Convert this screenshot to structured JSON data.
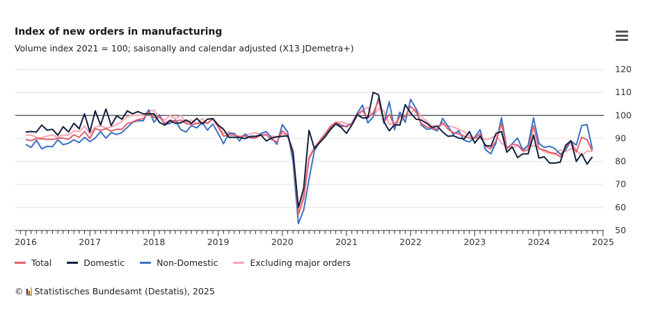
{
  "header": {
    "title": "Index of new orders in manufacturing",
    "subtitle": "Volume index 2021 = 100; saisonally and calendar adjusted (X13 JDemetra+)",
    "menu_icon": "hamburger-menu-icon"
  },
  "chart_data": {
    "type": "line",
    "title": "Index of new orders in manufacturing",
    "subtitle": "Volume index 2021 = 100; saisonally and calendar adjusted (X13 JDemetra+)",
    "x_start": "2016-01",
    "x_end": "2024-11",
    "x_frequency": "monthly",
    "x_ticks": [
      "2016",
      "2017",
      "2018",
      "2019",
      "2020",
      "2021",
      "2022",
      "2023",
      "2024",
      "2025"
    ],
    "y_ticks": [
      50,
      60,
      70,
      80,
      90,
      100,
      110,
      120
    ],
    "ylim": [
      50,
      120
    ],
    "y_axis_side": "right",
    "grid": true,
    "reference_line": 100,
    "legend_position": "bottom",
    "series": [
      {
        "name": "Total",
        "color": "#e0606e",
        "values": [
          89.5,
          89,
          90,
          89.8,
          89.6,
          89.6,
          90,
          90.2,
          89.6,
          91.6,
          90.5,
          93,
          90,
          94.3,
          93.5,
          94.3,
          93.2,
          94,
          94,
          96.5,
          97.2,
          98.2,
          98.6,
          101.5,
          99,
          99.5,
          96.5,
          98,
          97.5,
          98,
          96.5,
          96,
          96.5,
          97,
          96.6,
          98.5,
          95,
          91,
          91.5,
          91.5,
          90.5,
          91,
          90.5,
          90.2,
          91.5,
          91.5,
          89.5,
          88.5,
          93.3,
          91.5,
          83.5,
          57,
          64,
          81,
          86,
          89,
          92,
          95,
          97,
          96,
          95,
          96.5,
          100.5,
          102,
          99,
          101,
          106.5,
          97,
          100.5,
          95.5,
          99.5,
          99.5,
          104,
          101.5,
          96.5,
          95,
          94.5,
          94,
          97,
          94,
          92.5,
          92,
          91,
          90.2,
          90,
          92,
          86.5,
          85.5,
          89,
          96.5,
          85.5,
          87.5,
          87.2,
          84.5,
          85,
          95.5,
          85.5,
          85,
          84,
          83.5,
          82,
          86,
          89,
          84,
          90.5,
          89.5,
          84.5
        ]
      },
      {
        "name": "Domestic",
        "color": "#0f1f3d",
        "values": [
          92.8,
          93,
          92.8,
          95.8,
          93.6,
          94,
          91.4,
          95.1,
          92.8,
          96.6,
          94.2,
          100.7,
          92.8,
          102,
          95.8,
          102.8,
          95.6,
          99.8,
          98.4,
          102,
          100.7,
          101.7,
          100.7,
          100.7,
          100.7,
          97,
          95.8,
          97.7,
          96.6,
          96.8,
          98,
          96.6,
          98.7,
          96.3,
          98.4,
          98.6,
          95.8,
          94,
          90.5,
          90.5,
          90.5,
          89.9,
          90.9,
          90.9,
          91.5,
          88.9,
          90.2,
          90.7,
          90.9,
          91.1,
          84,
          60.1,
          68.3,
          93.5,
          85.6,
          88.2,
          90.7,
          93.8,
          96.3,
          94.8,
          92.2,
          95.8,
          100.4,
          98.9,
          98.9,
          110,
          109,
          97.3,
          93.3,
          96,
          95.8,
          104.7,
          101.1,
          98.4,
          98,
          96.6,
          94.8,
          95.3,
          92.8,
          90.9,
          91.2,
          90.2,
          89.7,
          93,
          88,
          91,
          87,
          86.6,
          92.2,
          93,
          84,
          86.4,
          81.7,
          83.3,
          83.3,
          91.5,
          81.5,
          82,
          79.3,
          79.3,
          79.7,
          87,
          89,
          80,
          83.3,
          78.8,
          82
        ]
      },
      {
        "name": "Non-Domestic",
        "color": "#3b6fc4",
        "values": [
          87.4,
          86.1,
          89.2,
          85.5,
          86.6,
          86.4,
          89.4,
          87.3,
          87.9,
          89.4,
          88.2,
          90.5,
          88.6,
          90.2,
          93,
          90.1,
          92.6,
          91.7,
          92.6,
          94.8,
          97,
          97.7,
          97.7,
          102.4,
          97,
          100.3,
          96,
          96.6,
          97.9,
          93.8,
          92.8,
          95.6,
          94.6,
          97,
          93.6,
          96.3,
          92.2,
          87.7,
          92.2,
          92.2,
          88.9,
          91.9,
          90.2,
          90.2,
          92.2,
          93,
          90.2,
          87.4,
          96,
          92.8,
          80,
          53,
          58.9,
          72.3,
          84.6,
          88.7,
          91.7,
          94.3,
          96.6,
          95.3,
          95.3,
          96.6,
          100.9,
          104.5,
          96.8,
          99.4,
          107.6,
          96.6,
          106,
          93.8,
          101.4,
          97,
          107,
          103,
          95.8,
          94,
          94.3,
          93.3,
          98.7,
          95.3,
          91.7,
          93.3,
          89.2,
          88.5,
          90.5,
          93.8,
          85.1,
          83.3,
          88.2,
          99.1,
          85.6,
          87.7,
          90.2,
          84.8,
          87.1,
          98.9,
          87.9,
          86.1,
          86.6,
          85.6,
          83.1,
          85.1,
          88.9,
          87.1,
          95.6,
          96,
          85.4
        ]
      },
      {
        "name": "Excluding major orders",
        "color": "#f5aab3",
        "values": [
          91.5,
          91.5,
          90.5,
          90.2,
          91,
          91.5,
          90.5,
          91.5,
          91.5,
          93.3,
          93,
          95.3,
          92,
          95,
          95.5,
          94.5,
          95,
          96,
          97.5,
          99.5,
          100,
          100,
          100,
          102,
          102.2,
          99,
          98,
          100,
          98.5,
          100,
          97,
          98,
          96.3,
          98.6,
          96.5,
          98.6,
          96,
          92,
          93,
          91.5,
          91,
          91.5,
          92,
          92.5,
          91.5,
          92,
          91,
          90.8,
          92,
          91.5,
          85,
          58,
          66,
          82,
          86,
          89,
          92,
          95.5,
          97,
          97.2,
          96.5,
          96,
          99.5,
          102.5,
          103.5,
          99.5,
          103,
          102,
          96,
          97,
          97,
          99.5,
          101,
          103,
          99.5,
          97.5,
          95.5,
          95.5,
          96,
          95.5,
          95,
          94,
          93,
          91,
          90.3,
          90,
          89.6,
          90,
          91.5,
          88,
          86.5,
          85.8,
          87,
          85.5,
          86,
          87,
          86,
          84.2,
          83.5,
          83.2,
          85,
          84.2,
          85.5,
          85,
          82.5,
          84.5,
          84.5
        ]
      }
    ]
  },
  "legend": [
    {
      "label": "Total",
      "color": "#e0606e"
    },
    {
      "label": "Domestic",
      "color": "#0f1f3d"
    },
    {
      "label": "Non-Domestic",
      "color": "#3b6fc4"
    },
    {
      "label": "Excluding major orders",
      "color": "#f5aab3"
    }
  ],
  "footer": {
    "copyright_symbol": "©",
    "credit": "Statistisches Bundesamt (Destatis), 2025",
    "logo_icon": "destatis-logo-icon"
  }
}
